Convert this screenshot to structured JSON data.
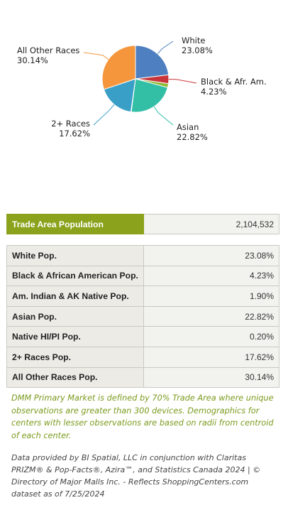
{
  "chart_data": {
    "type": "pie",
    "slices": [
      {
        "name": "White",
        "value": 23.08,
        "label": "23.08%",
        "color": "#4e7fc0"
      },
      {
        "name": "Black & Afr. Am.",
        "value": 4.23,
        "label": "4.23%",
        "color": "#c8353a"
      },
      {
        "name": "Am. Indian & AK Native",
        "value": 1.9,
        "label": "",
        "color": "#8fb935"
      },
      {
        "name": "Asian",
        "value": 22.82,
        "label": "22.82%",
        "color": "#33bfa6"
      },
      {
        "name": "Native HI/PI",
        "value": 0.2,
        "label": "",
        "color": "#6f5aa8"
      },
      {
        "name": "2+ Races",
        "value": 17.62,
        "label": "17.62%",
        "color": "#3a9fc6"
      },
      {
        "name": "All Other Races",
        "value": 30.14,
        "label": "30.14%",
        "color": "#f5963c"
      }
    ]
  },
  "population": {
    "label": "Trade Area Population",
    "value": "2,104,532"
  },
  "races": [
    {
      "label": "White Pop.",
      "value": "23.08%"
    },
    {
      "label": "Black & African American Pop.",
      "value": "4.23%"
    },
    {
      "label": "Am. Indian & AK Native Pop.",
      "value": "1.90%"
    },
    {
      "label": "Asian Pop.",
      "value": "22.82%"
    },
    {
      "label": "Native HI/PI Pop.",
      "value": "0.20%"
    },
    {
      "label": "2+ Races Pop.",
      "value": "17.62%"
    },
    {
      "label": "All Other Races Pop.",
      "value": "30.14%"
    }
  ],
  "note": "DMM Primary Market is defined by 70% Trade Area where unique observations are greater than 300 devices. Demographics for centers with lesser observations are based on radii from centroid of each center.",
  "source": "Data provided by BI Spatial, LLC in conjunction with Claritas PRIZM® & Pop-Facts®, Azira™, and Statistics Canada 2024 | © Directory of Major Malls Inc. - Reflects ShoppingCenters.com dataset as of 7/25/2024"
}
